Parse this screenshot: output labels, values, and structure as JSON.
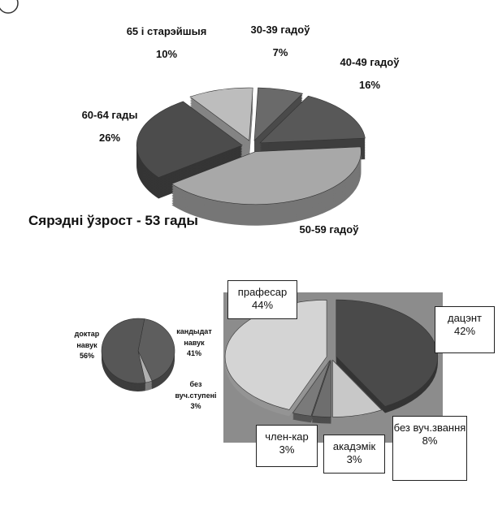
{
  "chart_data": [
    {
      "type": "pie",
      "categories": [
        "30-39 гадоў",
        "40-49 гадоў",
        "50-59 гадоў",
        "60-64 гады",
        "65 і старэйшыя"
      ],
      "values": [
        7,
        16,
        41,
        26,
        10
      ],
      "value_labels": [
        "7%",
        "16%",
        null,
        "26%",
        "10%"
      ],
      "colors": [
        "#6a6a6a",
        "#585858",
        "#a8a8a8",
        "#4c4c4c",
        "#bdbdbd"
      ],
      "annotation": "Сярэдні ўзрост - 53 гады"
    },
    {
      "type": "pie",
      "categories": [
        "кандыдат навук",
        "без вуч.ступені",
        "доктар навук"
      ],
      "values": [
        41,
        3,
        56
      ],
      "value_labels": [
        "41%",
        "3%",
        "56%"
      ],
      "colors": [
        "#5e5e5e",
        "#b0b0b0",
        "#575757"
      ]
    },
    {
      "type": "pie",
      "categories": [
        "дацэнт",
        "без вуч.звання",
        "акадэмік",
        "член-кар",
        "прафесар"
      ],
      "values": [
        42,
        8,
        3,
        3,
        44
      ],
      "value_labels": [
        "42%",
        "8%",
        "3%",
        "3%",
        "44%"
      ],
      "colors": [
        "#4a4a4a",
        "#c8c8c8",
        "#6e6e6e",
        "#7a7a7a",
        "#d4d4d4"
      ]
    }
  ]
}
